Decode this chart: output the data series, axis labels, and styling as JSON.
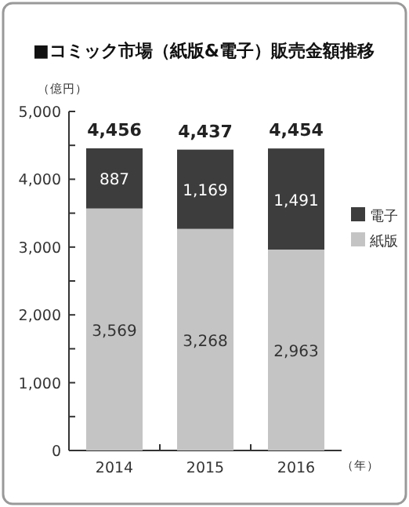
{
  "chart_data": {
    "type": "bar",
    "stacked": true,
    "title": "■コミック市場（紙版&電子）販売金額推移",
    "ylabel": "（億円）",
    "xlabel": "（年）",
    "categories": [
      "2014",
      "2015",
      "2016"
    ],
    "series": [
      {
        "name": "紙版",
        "color": "#c4c4c4",
        "values": [
          3569,
          3268,
          2963
        ],
        "value_labels": [
          "3,569",
          "3,268",
          "2,963"
        ]
      },
      {
        "name": "電子",
        "color": "#3d3d3d",
        "values": [
          887,
          1169,
          1491
        ],
        "value_labels": [
          "887",
          "1,169",
          "1,491"
        ]
      }
    ],
    "totals": [
      "4,456",
      "4,437",
      "4,454"
    ],
    "ylim": [
      0,
      5000
    ],
    "yticks": [
      0,
      {
        "value": 500,
        "label": null
      },
      {
        "value": 1000,
        "label": "1,000"
      },
      {
        "value": 1500,
        "label": null
      },
      {
        "value": 2000,
        "label": "2,000"
      },
      {
        "value": 2500,
        "label": null
      },
      {
        "value": 3000,
        "label": "3,000"
      },
      {
        "value": 3500,
        "label": null
      },
      {
        "value": 4000,
        "label": "4,000"
      },
      {
        "value": 4500,
        "label": null
      },
      {
        "value": 5000,
        "label": "5,000"
      }
    ],
    "legend": "right",
    "grid": false
  }
}
